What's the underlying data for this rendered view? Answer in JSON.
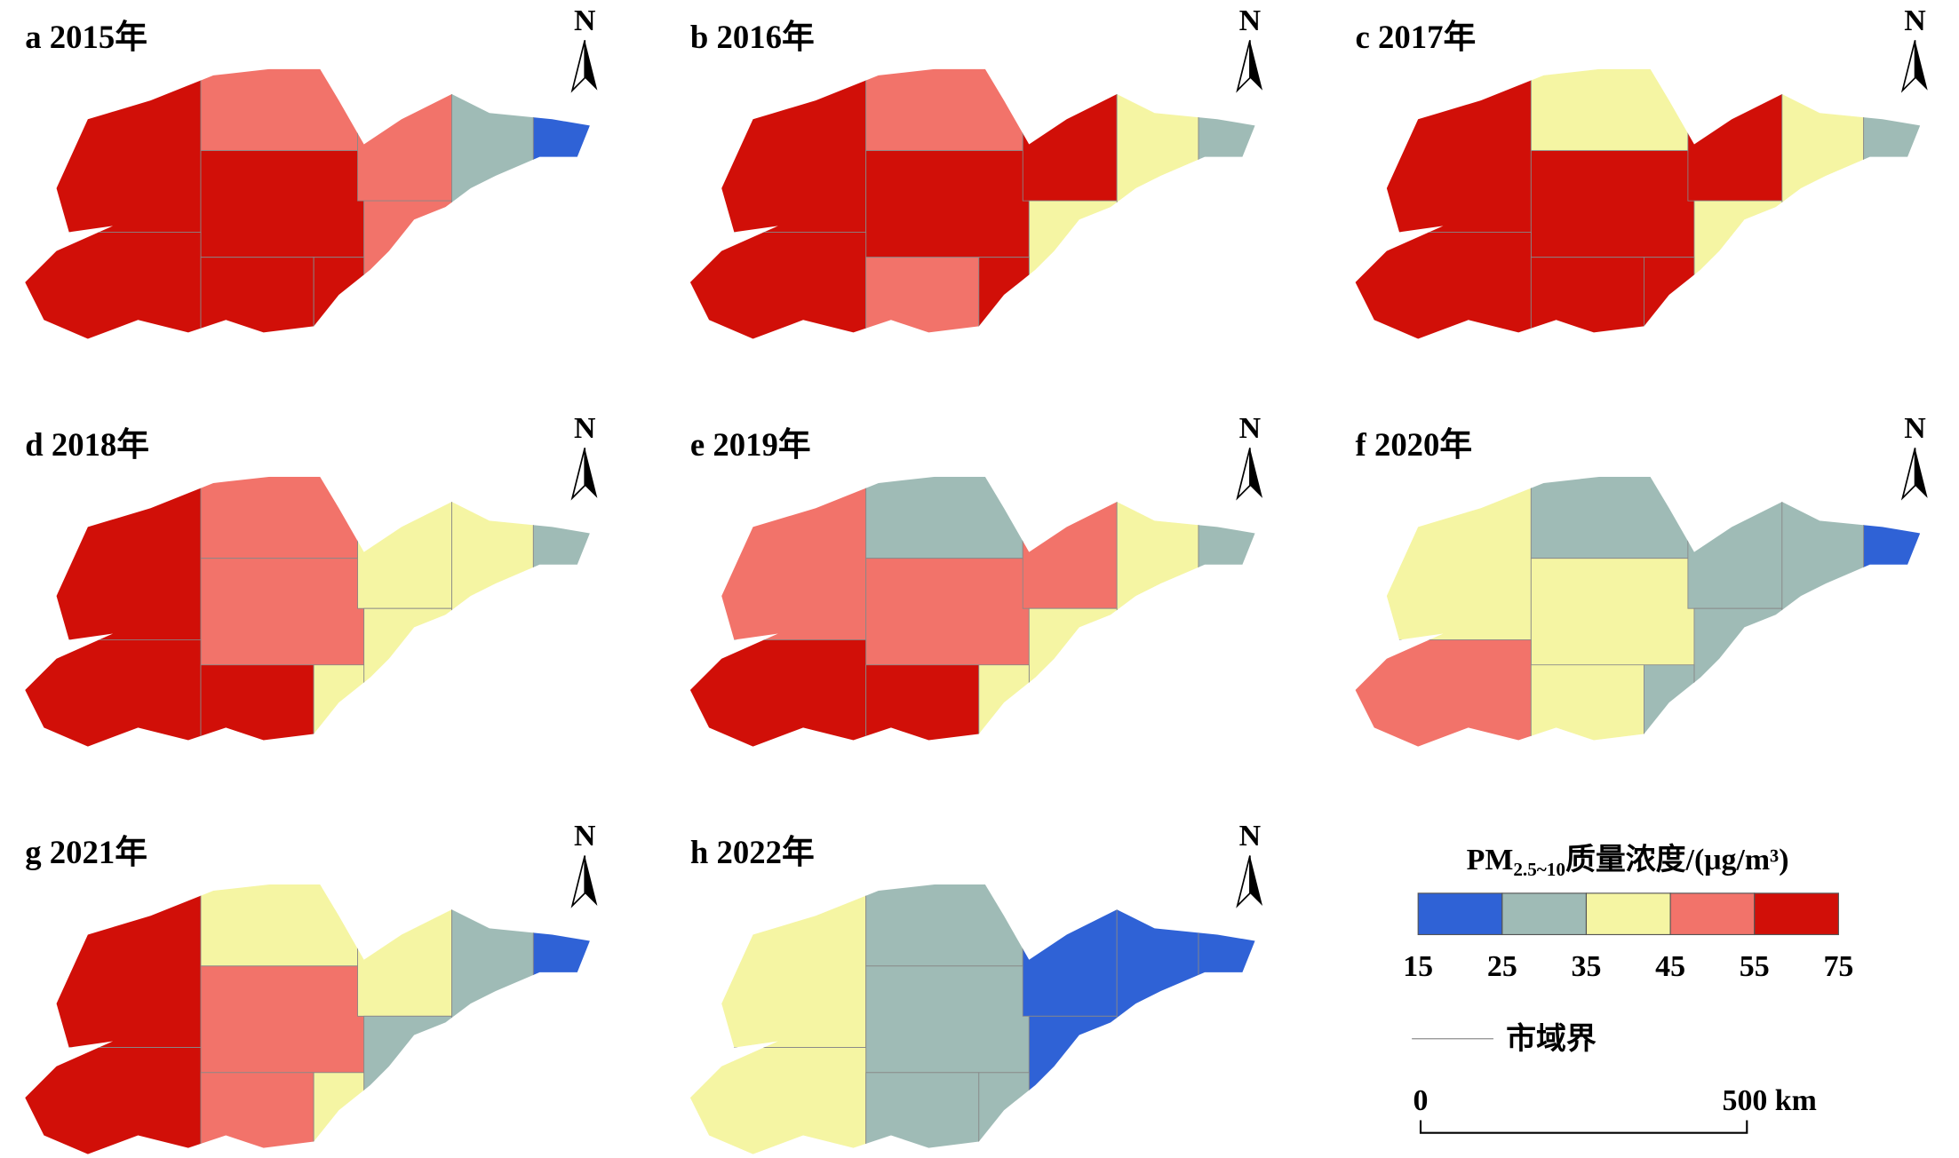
{
  "panels": [
    {
      "label": "a 2015年"
    },
    {
      "label": "b 2016年"
    },
    {
      "label": "c 2017年"
    },
    {
      "label": "d 2018年"
    },
    {
      "label": "e 2019年"
    },
    {
      "label": "f 2020年"
    },
    {
      "label": "g 2021年"
    },
    {
      "label": "h 2022年"
    }
  ],
  "north": "N",
  "legend": {
    "title_main": "PM",
    "title_sub": "2.5~10",
    "title_rest": "质量浓度/(μg/m³)",
    "ticks": [
      15,
      25,
      35,
      45,
      55,
      75
    ],
    "colors": [
      "#2f62d6",
      "#9fbbb6",
      "#f5f5a3",
      "#f2736a",
      "#d10f08"
    ],
    "boundary": "市域界"
  },
  "scale_bar": {
    "start": "0",
    "end": "500 km"
  }
}
